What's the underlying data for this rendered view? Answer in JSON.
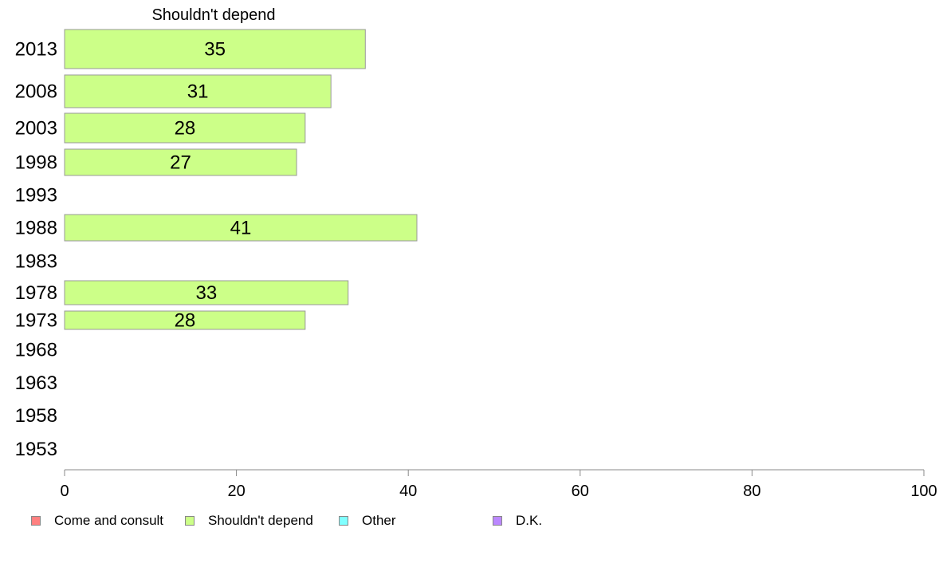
{
  "chart_data": {
    "type": "bar",
    "orientation": "horizontal",
    "title": "Shouldn't depend",
    "categories": [
      "2013",
      "2008",
      "2003",
      "1998",
      "1993",
      "1988",
      "1983",
      "1978",
      "1973",
      "1968",
      "1963",
      "1958",
      "1953"
    ],
    "series": [
      {
        "name": "Come and consult",
        "color": "#ff8080",
        "values": [
          null,
          null,
          null,
          null,
          null,
          null,
          null,
          null,
          null,
          null,
          null,
          null,
          null
        ]
      },
      {
        "name": "Shouldn't depend",
        "color": "#ccff88",
        "values": [
          35,
          31,
          28,
          27,
          null,
          41,
          null,
          33,
          28,
          null,
          null,
          null,
          null
        ]
      },
      {
        "name": "Other",
        "color": "#80ffff",
        "values": [
          null,
          null,
          null,
          null,
          null,
          null,
          null,
          null,
          null,
          null,
          null,
          null,
          null
        ]
      },
      {
        "name": "D.K.",
        "color": "#bb88ff",
        "values": [
          null,
          null,
          null,
          null,
          null,
          null,
          null,
          null,
          null,
          null,
          null,
          null,
          null
        ]
      }
    ],
    "displayed_series": "Shouldn't depend",
    "data_labels": [
      "35",
      "31",
      "28",
      "27",
      "",
      "41",
      "",
      "33",
      "28",
      "",
      "",
      "",
      ""
    ],
    "xlim": [
      0,
      100
    ],
    "x_ticks": [
      "0",
      "20",
      "40",
      "60",
      "80",
      "100"
    ],
    "xlabel": "",
    "ylabel": "",
    "grid": false,
    "legend_position": "bottom-left"
  }
}
